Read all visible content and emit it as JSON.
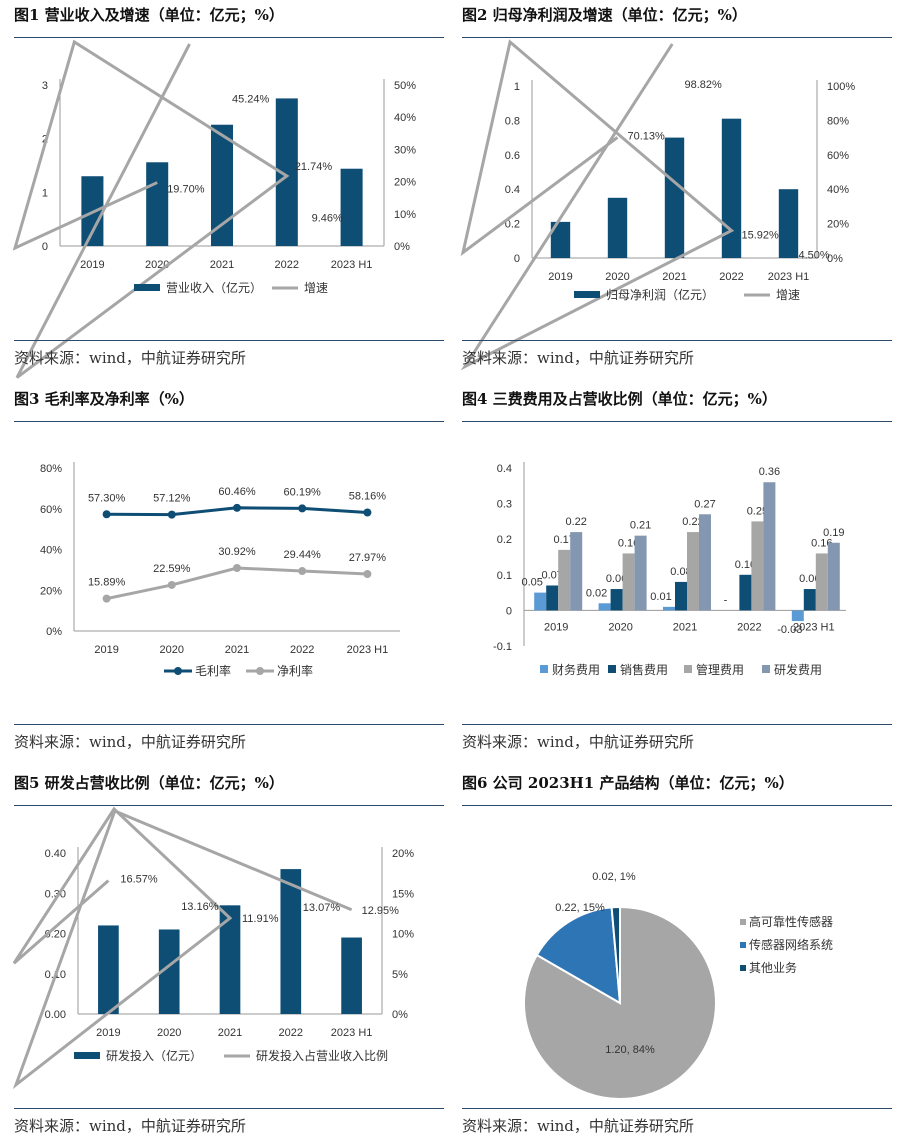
{
  "source_text": "资料来源：wind，中航证券研究所",
  "colors": {
    "bar": "#0e4d74",
    "line": "#a6a6a6",
    "rule": "#2a4a6b",
    "finance": "#5b9bd5",
    "sales": "#0e4d74",
    "mgmt": "#a6a6a6",
    "rnd": "#8497b0",
    "pie_main": "#a6a6a6",
    "pie_net": "#2e75b6",
    "pie_other": "#0e4d74"
  },
  "chart_data": [
    {
      "title": "图1 营业收入及增速（单位：亿元；%）",
      "type": "bar",
      "categories": [
        "2019",
        "2020",
        "2021",
        "2022",
        "2023H1"
      ],
      "series": [
        {
          "name": "营业收入（亿元）",
          "values": [
            1.3,
            1.56,
            2.26,
            2.75,
            1.44
          ],
          "axis": "left"
        },
        {
          "name": "增速",
          "values": [
            null,
            19.7,
            45.24,
            21.74,
            9.46
          ],
          "axis": "right",
          "kind": "line",
          "labels": [
            "",
            "19.70%",
            "45.24%",
            "21.74%",
            "9.46%"
          ]
        }
      ],
      "left_ticks": [
        "0",
        "1",
        "2",
        "3"
      ],
      "ylim": [
        0,
        3
      ],
      "right_ticks": [
        "0%",
        "10%",
        "20%",
        "30%",
        "40%",
        "50%"
      ],
      "y2lim": [
        0,
        50
      ]
    },
    {
      "title": "图2 归母净利润及增速（单位：亿元；%）",
      "type": "bar",
      "categories": [
        "2019",
        "2020",
        "2021",
        "2022",
        "2023H1"
      ],
      "series": [
        {
          "name": "归母净利润（亿元）",
          "values": [
            0.21,
            0.35,
            0.7,
            0.81,
            0.4
          ],
          "axis": "left"
        },
        {
          "name": "增速",
          "values": [
            null,
            70.13,
            98.82,
            15.92,
            4.5
          ],
          "axis": "right",
          "kind": "line",
          "labels": [
            "",
            "70.13%",
            "98.82%",
            "15.92%",
            "4.50%"
          ]
        }
      ],
      "left_ticks": [
        "0",
        "0.2",
        "0.4",
        "0.6",
        "0.8",
        "1"
      ],
      "ylim": [
        0,
        1
      ],
      "right_ticks": [
        "0%",
        "20%",
        "40%",
        "60%",
        "80%",
        "100%"
      ],
      "y2lim": [
        0,
        100
      ]
    },
    {
      "title": "图3 毛利率及净利率（%）",
      "type": "line",
      "categories": [
        "2019",
        "2020",
        "2021",
        "2022",
        "2023H1"
      ],
      "series": [
        {
          "name": "毛利率",
          "values": [
            57.3,
            57.12,
            60.46,
            60.19,
            58.16
          ],
          "labels": [
            "57.30%",
            "57.12%",
            "60.46%",
            "60.19%",
            "58.16%"
          ]
        },
        {
          "name": "净利率",
          "values": [
            15.89,
            22.59,
            30.92,
            29.44,
            27.97
          ],
          "labels": [
            "15.89%",
            "22.59%",
            "30.92%",
            "29.44%",
            "27.97%"
          ]
        }
      ],
      "left_ticks": [
        "0%",
        "20%",
        "40%",
        "60%",
        "80%"
      ],
      "ylim": [
        0,
        80
      ]
    },
    {
      "title": "图4 三费费用及占营收比例（单位：亿元；%）",
      "type": "bar",
      "categories": [
        "2019",
        "2020",
        "2021",
        "2022",
        "2023H1"
      ],
      "series": [
        {
          "name": "财务费用",
          "values": [
            0.05,
            0.02,
            0.01,
            0,
            -0.03
          ],
          "labels": [
            "0.05",
            "0.02",
            "0.01",
            "-",
            "-0.03"
          ]
        },
        {
          "name": "销售费用",
          "values": [
            0.07,
            0.06,
            0.08,
            0.1,
            0.06
          ],
          "labels": [
            "0.07",
            "0.06",
            "0.08",
            "0.10",
            "0.06"
          ]
        },
        {
          "name": "管理费用",
          "values": [
            0.17,
            0.16,
            0.22,
            0.25,
            0.16
          ],
          "labels": [
            "0.17",
            "0.16",
            "0.22",
            "0.25",
            "0.16"
          ]
        },
        {
          "name": "研发费用",
          "values": [
            0.22,
            0.21,
            0.27,
            0.36,
            0.19
          ],
          "labels": [
            "0.22",
            "0.21",
            "0.27",
            "0.36",
            "0.19"
          ]
        }
      ],
      "left_ticks": [
        "-0.1",
        "0",
        "0.1",
        "0.2",
        "0.3",
        "0.4"
      ],
      "ylim": [
        -0.1,
        0.4
      ]
    },
    {
      "title": "图5 研发占营收比例（单位：亿元；%）",
      "type": "bar",
      "categories": [
        "2019",
        "2020",
        "2021",
        "2022",
        "2023H1"
      ],
      "series": [
        {
          "name": "研发投入（亿元）",
          "values": [
            0.22,
            0.21,
            0.27,
            0.36,
            0.19
          ],
          "axis": "left"
        },
        {
          "name": "研发投入占营业收入比例",
          "values": [
            16.57,
            13.16,
            11.91,
            13.07,
            12.95
          ],
          "axis": "right",
          "kind": "line",
          "labels": [
            "16.57%",
            "13.16%",
            "11.91%",
            "13.07%",
            "12.95%"
          ]
        }
      ],
      "left_ticks": [
        "0.00",
        "0.10",
        "0.20",
        "0.30",
        "0.40"
      ],
      "ylim": [
        0,
        0.4
      ],
      "right_ticks": [
        "0%",
        "5%",
        "10%",
        "15%",
        "20%"
      ],
      "y2lim": [
        0,
        20
      ]
    },
    {
      "title": "图6 公司 2023H1 产品结构（单位：亿元；%）",
      "type": "pie",
      "slices": [
        {
          "name": "高可靠性传感器",
          "value": 1.2,
          "label": "1.20, 84%"
        },
        {
          "name": "传感器网络系统",
          "value": 0.22,
          "label": "0.22, 15%"
        },
        {
          "name": "其他业务",
          "value": 0.02,
          "label": "0.02, 1%"
        }
      ]
    }
  ]
}
